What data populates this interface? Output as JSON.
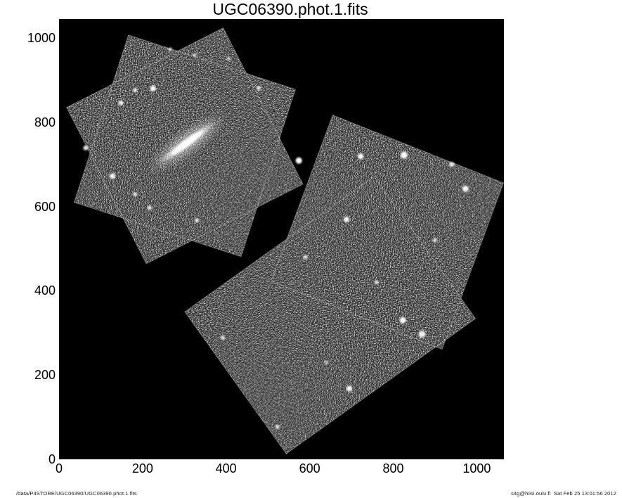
{
  "window": {
    "title": "UGC06390.phot.1.fits",
    "footer_left": "/data/P4STORE/UGC06390/UGC06390.phot.1.fits",
    "footer_right": "s4g@hiisi.oulu.fi  Sat Feb 25 13:01:56 2012"
  },
  "colors": {
    "page_bg": "#ffffff",
    "plot_bg": "#000000",
    "axis_text": "#000000",
    "footer_text": "#1a1a1a",
    "speckle": "#ffffff",
    "frame_edge": "rgba(255,255,255,0.25)"
  },
  "chart_data": {
    "type": "heatmap",
    "title": "UGC06390.phot.1.fits",
    "xlabel": "",
    "ylabel": "",
    "xlim": [
      0,
      1065
    ],
    "ylim": [
      0,
      1045
    ],
    "x_ticks": [
      0,
      200,
      400,
      600,
      800,
      1000
    ],
    "y_ticks": [
      0,
      200,
      400,
      600,
      800,
      1000
    ],
    "grid": false,
    "legend": null,
    "content_note": "Grayscale astronomical image: two speckled star-field mosaic footprints on black sky; edge-on galaxy streak in the north-west star-shaped footprint",
    "footprints": [
      {
        "name": "north-mosaic-square-1",
        "polygon": [
          [
            436,
            481
          ],
          [
            36,
            610
          ],
          [
            166,
            1007
          ],
          [
            566,
            878
          ]
        ]
      },
      {
        "name": "north-mosaic-square-2",
        "polygon": [
          [
            209,
            464
          ],
          [
            18,
            835
          ],
          [
            393,
            1024
          ],
          [
            584,
            653
          ]
        ]
      },
      {
        "name": "south-mosaic-rect-1",
        "polygon": [
          [
            655,
            817
          ],
          [
            1064,
            656
          ],
          [
            917,
            261
          ],
          [
            508,
            423
          ]
        ]
      },
      {
        "name": "south-mosaic-rect-2",
        "polygon": [
          [
            301,
            350
          ],
          [
            754,
            671
          ],
          [
            997,
            334
          ],
          [
            544,
            13
          ]
        ]
      }
    ],
    "galaxy": {
      "name": "galaxy-streak",
      "x": 306,
      "y": 751,
      "major": 170,
      "minor": 26,
      "position_angle": 36
    },
    "stars": [
      {
        "x": 225,
        "y": 880,
        "r": 4,
        "b": 1
      },
      {
        "x": 182,
        "y": 876,
        "r": 3,
        "b": 0.9
      },
      {
        "x": 148,
        "y": 846,
        "r": 3.5,
        "b": 0.95
      },
      {
        "x": 266,
        "y": 973,
        "r": 2.5,
        "b": 0.85
      },
      {
        "x": 325,
        "y": 959,
        "r": 2.5,
        "b": 0.8
      },
      {
        "x": 406,
        "y": 951,
        "r": 2.5,
        "b": 0.8
      },
      {
        "x": 478,
        "y": 881,
        "r": 3,
        "b": 0.9
      },
      {
        "x": 64,
        "y": 739,
        "r": 3.5,
        "b": 0.9
      },
      {
        "x": 128,
        "y": 672,
        "r": 4,
        "b": 0.95
      },
      {
        "x": 182,
        "y": 629,
        "r": 3,
        "b": 0.85
      },
      {
        "x": 217,
        "y": 597,
        "r": 3,
        "b": 0.9
      },
      {
        "x": 330,
        "y": 567,
        "r": 3,
        "b": 0.85
      },
      {
        "x": 574,
        "y": 709,
        "r": 4.5,
        "b": 1
      },
      {
        "x": 722,
        "y": 719,
        "r": 4,
        "b": 1
      },
      {
        "x": 826,
        "y": 722,
        "r": 5,
        "b": 1
      },
      {
        "x": 940,
        "y": 700,
        "r": 3.5,
        "b": 0.9
      },
      {
        "x": 973,
        "y": 642,
        "r": 4.5,
        "b": 0.95
      },
      {
        "x": 688,
        "y": 569,
        "r": 4,
        "b": 0.95
      },
      {
        "x": 823,
        "y": 330,
        "r": 4.5,
        "b": 1
      },
      {
        "x": 695,
        "y": 168,
        "r": 4,
        "b": 1
      },
      {
        "x": 392,
        "y": 289,
        "r": 3,
        "b": 0.85
      },
      {
        "x": 523,
        "y": 77,
        "r": 3,
        "b": 0.85
      },
      {
        "x": 869,
        "y": 297,
        "r": 5,
        "b": 0.9
      },
      {
        "x": 760,
        "y": 420,
        "r": 3,
        "b": 0.8
      },
      {
        "x": 640,
        "y": 230,
        "r": 2.5,
        "b": 0.75
      },
      {
        "x": 900,
        "y": 520,
        "r": 3,
        "b": 0.8
      },
      {
        "x": 590,
        "y": 480,
        "r": 3,
        "b": 0.85
      }
    ]
  }
}
